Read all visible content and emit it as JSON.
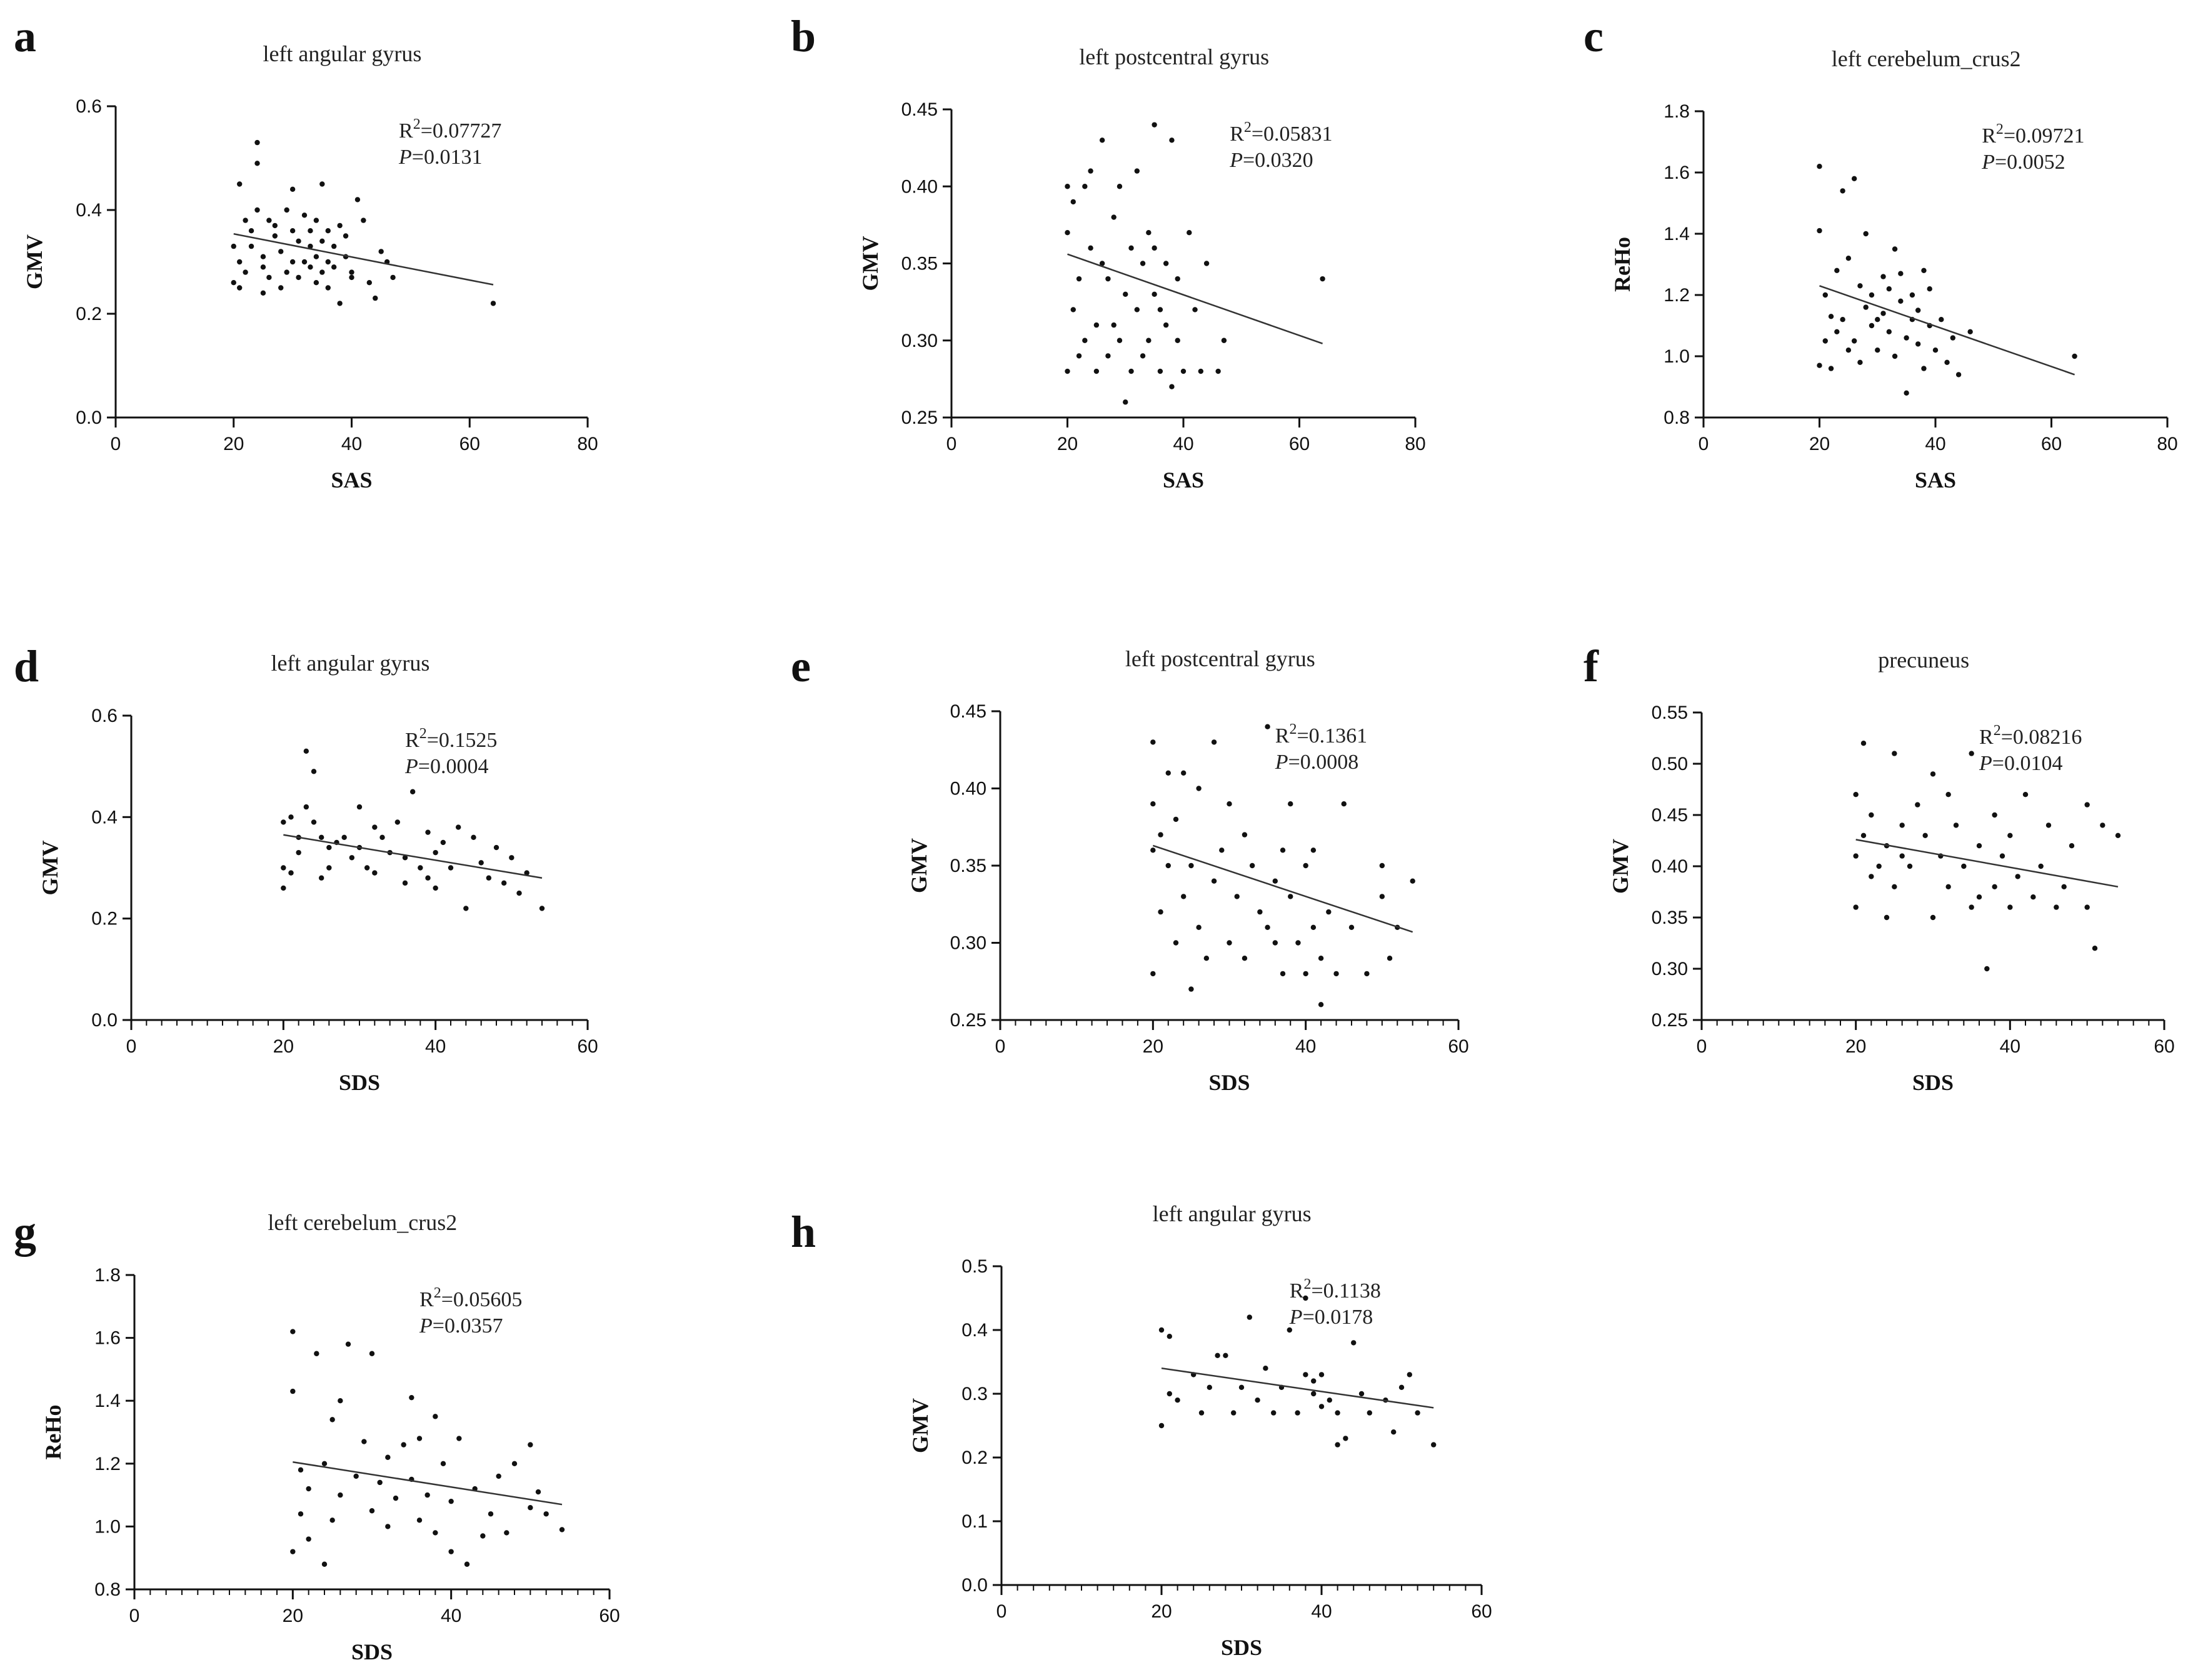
{
  "chart_data": [
    {
      "type": "scatter",
      "panel": "a",
      "title": "left angular gyrus",
      "xlabel": "SAS",
      "ylabel": "GMV",
      "xlim": [
        0,
        80
      ],
      "ylim": [
        0.0,
        0.6
      ],
      "xticks": [
        "0",
        "20",
        "40",
        "60",
        "80"
      ],
      "yticks": [
        "0.0",
        "0.2",
        "0.4",
        "0.6"
      ],
      "minor_x": false,
      "r2_label": "R",
      "r2_value": "=0.07727",
      "p_label": "P",
      "p_value": "=0.0131",
      "fit": {
        "x": [
          20,
          64
        ],
        "y": [
          0.354,
          0.256
        ]
      },
      "points": {
        "x": [
          20,
          20,
          21,
          21,
          21,
          22,
          22,
          23,
          23,
          24,
          24,
          24,
          25,
          25,
          25,
          26,
          26,
          27,
          27,
          28,
          28,
          29,
          29,
          30,
          30,
          30,
          31,
          31,
          32,
          32,
          33,
          33,
          33,
          34,
          34,
          34,
          35,
          35,
          35,
          36,
          36,
          36,
          37,
          37,
          38,
          38,
          39,
          39,
          40,
          40,
          41,
          42,
          43,
          44,
          45,
          46,
          47,
          64
        ],
        "y": [
          0.33,
          0.26,
          0.3,
          0.45,
          0.25,
          0.38,
          0.28,
          0.33,
          0.36,
          0.49,
          0.53,
          0.4,
          0.24,
          0.31,
          0.29,
          0.38,
          0.27,
          0.35,
          0.37,
          0.32,
          0.25,
          0.4,
          0.28,
          0.36,
          0.3,
          0.44,
          0.34,
          0.27,
          0.39,
          0.3,
          0.33,
          0.36,
          0.29,
          0.31,
          0.38,
          0.26,
          0.34,
          0.45,
          0.28,
          0.3,
          0.36,
          0.25,
          0.33,
          0.29,
          0.37,
          0.22,
          0.31,
          0.35,
          0.28,
          0.27,
          0.42,
          0.38,
          0.26,
          0.23,
          0.32,
          0.3,
          0.27,
          0.22
        ]
      }
    },
    {
      "type": "scatter",
      "panel": "b",
      "title": "left postcentral gyrus",
      "xlabel": "SAS",
      "ylabel": "GMV",
      "xlim": [
        0,
        80
      ],
      "ylim": [
        0.25,
        0.45
      ],
      "xticks": [
        "0",
        "20",
        "40",
        "60",
        "80"
      ],
      "yticks": [
        "0.25",
        "0.30",
        "0.35",
        "0.40",
        "0.45"
      ],
      "minor_x": false,
      "r2_label": "R",
      "r2_value": "=0.05831",
      "p_label": "P",
      "p_value": "=0.0320",
      "fit": {
        "x": [
          20,
          64
        ],
        "y": [
          0.356,
          0.298
        ]
      },
      "points": {
        "x": [
          20,
          20,
          20,
          21,
          21,
          22,
          22,
          23,
          23,
          24,
          24,
          25,
          25,
          26,
          26,
          27,
          27,
          28,
          28,
          29,
          29,
          30,
          30,
          31,
          31,
          32,
          32,
          33,
          33,
          34,
          34,
          35,
          35,
          35,
          36,
          36,
          37,
          37,
          38,
          38,
          39,
          39,
          40,
          41,
          42,
          43,
          44,
          46,
          47,
          64
        ],
        "y": [
          0.4,
          0.28,
          0.37,
          0.32,
          0.39,
          0.34,
          0.29,
          0.4,
          0.3,
          0.41,
          0.36,
          0.31,
          0.28,
          0.43,
          0.35,
          0.29,
          0.34,
          0.38,
          0.31,
          0.4,
          0.3,
          0.26,
          0.33,
          0.36,
          0.28,
          0.41,
          0.32,
          0.35,
          0.29,
          0.37,
          0.3,
          0.44,
          0.33,
          0.36,
          0.28,
          0.32,
          0.35,
          0.31,
          0.43,
          0.27,
          0.3,
          0.34,
          0.28,
          0.37,
          0.32,
          0.28,
          0.35,
          0.28,
          0.3,
          0.34
        ]
      }
    },
    {
      "type": "scatter",
      "panel": "c",
      "title": "left cerebelum_crus2",
      "xlabel": "SAS",
      "ylabel": "ReHo",
      "xlim": [
        0,
        80
      ],
      "ylim": [
        0.8,
        1.8
      ],
      "xticks": [
        "0",
        "20",
        "40",
        "60",
        "80"
      ],
      "yticks": [
        "0.8",
        "1.0",
        "1.2",
        "1.4",
        "1.6",
        "1.8"
      ],
      "minor_x": false,
      "r2_label": "R",
      "r2_value": "=0.09721",
      "p_label": "P",
      "p_value": "=0.0052",
      "fit": {
        "x": [
          20,
          64
        ],
        "y": [
          1.23,
          0.94
        ]
      },
      "points": {
        "x": [
          20,
          20,
          20,
          21,
          21,
          22,
          22,
          23,
          23,
          24,
          24,
          25,
          25,
          26,
          26,
          27,
          27,
          28,
          28,
          29,
          29,
          30,
          30,
          31,
          31,
          32,
          32,
          33,
          33,
          34,
          34,
          35,
          35,
          36,
          36,
          37,
          37,
          38,
          38,
          39,
          39,
          40,
          41,
          42,
          43,
          44,
          46,
          64
        ],
        "y": [
          1.62,
          1.41,
          0.97,
          1.2,
          1.05,
          1.13,
          0.96,
          1.28,
          1.08,
          1.54,
          1.12,
          1.32,
          1.02,
          1.58,
          1.05,
          1.23,
          0.98,
          1.16,
          1.4,
          1.1,
          1.2,
          1.12,
          1.02,
          1.26,
          1.14,
          1.08,
          1.22,
          1.35,
          1.0,
          1.18,
          1.27,
          1.06,
          0.88,
          1.2,
          1.12,
          1.15,
          1.04,
          1.28,
          0.96,
          1.1,
          1.22,
          1.02,
          1.12,
          0.98,
          1.06,
          0.94,
          1.08,
          1.0
        ]
      }
    },
    {
      "type": "scatter",
      "panel": "d",
      "title": "left angular gyrus",
      "xlabel": "SDS",
      "ylabel": "GMV",
      "xlim": [
        0,
        60
      ],
      "ylim": [
        0.0,
        0.6
      ],
      "xticks": [
        "0",
        "20",
        "40",
        "60"
      ],
      "yticks": [
        "0.0",
        "0.2",
        "0.4",
        "0.6"
      ],
      "minor_x": true,
      "r2_label": "R",
      "r2_value": "=0.1525",
      "p_label": "P",
      "p_value": "=0.0004",
      "fit": {
        "x": [
          20,
          54
        ],
        "y": [
          0.365,
          0.28
        ]
      },
      "points": {
        "x": [
          20,
          20,
          20,
          21,
          21,
          22,
          22,
          23,
          23,
          24,
          24,
          25,
          25,
          26,
          26,
          27,
          28,
          29,
          30,
          30,
          31,
          32,
          32,
          33,
          34,
          35,
          36,
          36,
          37,
          38,
          39,
          39,
          40,
          40,
          41,
          42,
          43,
          44,
          45,
          46,
          47,
          48,
          49,
          50,
          51,
          52,
          54
        ],
        "y": [
          0.26,
          0.39,
          0.3,
          0.4,
          0.29,
          0.33,
          0.36,
          0.53,
          0.42,
          0.49,
          0.39,
          0.36,
          0.28,
          0.34,
          0.3,
          0.35,
          0.36,
          0.32,
          0.34,
          0.42,
          0.3,
          0.38,
          0.29,
          0.36,
          0.33,
          0.39,
          0.27,
          0.32,
          0.45,
          0.3,
          0.28,
          0.37,
          0.33,
          0.26,
          0.35,
          0.3,
          0.38,
          0.22,
          0.36,
          0.31,
          0.28,
          0.34,
          0.27,
          0.32,
          0.25,
          0.29,
          0.22
        ]
      }
    },
    {
      "type": "scatter",
      "panel": "e",
      "title": "left postcentral gyrus",
      "xlabel": "SDS",
      "ylabel": "GMV",
      "xlim": [
        0,
        60
      ],
      "ylim": [
        0.25,
        0.45
      ],
      "xticks": [
        "0",
        "20",
        "40",
        "60"
      ],
      "yticks": [
        "0.25",
        "0.30",
        "0.35",
        "0.40",
        "0.45"
      ],
      "minor_x": true,
      "r2_label": "R",
      "r2_value": "=0.1361",
      "p_label": "P",
      "p_value": "=0.0008",
      "fit": {
        "x": [
          20,
          54
        ],
        "y": [
          0.363,
          0.307
        ]
      },
      "points": {
        "x": [
          20,
          20,
          20,
          20,
          21,
          21,
          22,
          22,
          23,
          23,
          24,
          24,
          25,
          25,
          26,
          26,
          27,
          28,
          28,
          29,
          30,
          30,
          31,
          32,
          32,
          33,
          34,
          35,
          35,
          36,
          36,
          37,
          37,
          38,
          38,
          39,
          40,
          40,
          41,
          41,
          42,
          42,
          43,
          44,
          45,
          46,
          48,
          50,
          50,
          51,
          52,
          54
        ],
        "y": [
          0.43,
          0.39,
          0.36,
          0.28,
          0.37,
          0.32,
          0.41,
          0.35,
          0.3,
          0.38,
          0.41,
          0.33,
          0.35,
          0.27,
          0.4,
          0.31,
          0.29,
          0.43,
          0.34,
          0.36,
          0.3,
          0.39,
          0.33,
          0.37,
          0.29,
          0.35,
          0.32,
          0.44,
          0.31,
          0.34,
          0.3,
          0.36,
          0.28,
          0.33,
          0.39,
          0.3,
          0.35,
          0.28,
          0.31,
          0.36,
          0.26,
          0.29,
          0.32,
          0.28,
          0.39,
          0.31,
          0.28,
          0.35,
          0.33,
          0.29,
          0.31,
          0.34
        ]
      }
    },
    {
      "type": "scatter",
      "panel": "f",
      "title": "precuneus",
      "xlabel": "SDS",
      "ylabel": "GMV",
      "xlim": [
        0,
        60
      ],
      "ylim": [
        0.25,
        0.55
      ],
      "xticks": [
        "0",
        "20",
        "40",
        "60"
      ],
      "yticks": [
        "0.25",
        "0.30",
        "0.35",
        "0.40",
        "0.45",
        "0.50",
        "0.55"
      ],
      "minor_x": true,
      "r2_label": "R",
      "r2_value": "=0.08216",
      "p_label": "P",
      "p_value": "=0.0104",
      "fit": {
        "x": [
          20,
          54
        ],
        "y": [
          0.426,
          0.38
        ]
      },
      "points": {
        "x": [
          20,
          20,
          20,
          21,
          21,
          22,
          22,
          23,
          24,
          24,
          25,
          25,
          26,
          26,
          27,
          28,
          29,
          30,
          30,
          31,
          32,
          32,
          33,
          34,
          35,
          35,
          36,
          36,
          37,
          38,
          38,
          39,
          40,
          40,
          41,
          42,
          43,
          44,
          45,
          46,
          47,
          48,
          50,
          50,
          51,
          52,
          54
        ],
        "y": [
          0.47,
          0.41,
          0.36,
          0.52,
          0.43,
          0.39,
          0.45,
          0.4,
          0.35,
          0.42,
          0.51,
          0.38,
          0.44,
          0.41,
          0.4,
          0.46,
          0.43,
          0.35,
          0.49,
          0.41,
          0.38,
          0.47,
          0.44,
          0.4,
          0.36,
          0.51,
          0.42,
          0.37,
          0.3,
          0.45,
          0.38,
          0.41,
          0.36,
          0.43,
          0.39,
          0.47,
          0.37,
          0.4,
          0.44,
          0.36,
          0.38,
          0.42,
          0.46,
          0.36,
          0.32,
          0.44,
          0.43
        ]
      }
    },
    {
      "type": "scatter",
      "panel": "g",
      "title": "left cerebelum_crus2",
      "xlabel": "SDS",
      "ylabel": "ReHo",
      "xlim": [
        0,
        60
      ],
      "ylim": [
        0.8,
        1.8
      ],
      "xticks": [
        "0",
        "20",
        "40",
        "60"
      ],
      "yticks": [
        "0.8",
        "1.0",
        "1.2",
        "1.4",
        "1.6",
        "1.8"
      ],
      "minor_x": true,
      "r2_label": "R",
      "r2_value": "=0.05605",
      "p_label": "P",
      "p_value": "=0.0357",
      "fit": {
        "x": [
          20,
          54
        ],
        "y": [
          1.205,
          1.07
        ]
      },
      "points": {
        "x": [
          20,
          20,
          20,
          21,
          21,
          22,
          22,
          23,
          24,
          24,
          25,
          25,
          26,
          26,
          27,
          28,
          29,
          30,
          30,
          31,
          32,
          32,
          33,
          34,
          35,
          35,
          36,
          36,
          37,
          38,
          38,
          39,
          40,
          40,
          41,
          42,
          43,
          44,
          45,
          46,
          47,
          48,
          50,
          50,
          51,
          52,
          54
        ],
        "y": [
          1.62,
          1.43,
          0.92,
          1.18,
          1.04,
          1.12,
          0.96,
          1.55,
          0.88,
          1.2,
          1.34,
          1.02,
          1.4,
          1.1,
          1.58,
          1.16,
          1.27,
          1.55,
          1.05,
          1.14,
          1.0,
          1.22,
          1.09,
          1.26,
          1.41,
          1.15,
          1.02,
          1.28,
          1.1,
          1.35,
          0.98,
          1.2,
          1.08,
          0.92,
          1.28,
          0.88,
          1.12,
          0.97,
          1.04,
          1.16,
          0.98,
          1.2,
          1.26,
          1.06,
          1.11,
          1.04,
          0.99
        ]
      }
    },
    {
      "type": "scatter",
      "panel": "h",
      "title": "left angular gyrus",
      "xlabel": "SDS",
      "ylabel": "GMV",
      "xlim": [
        0,
        60
      ],
      "ylim": [
        0.0,
        0.5
      ],
      "xticks": [
        "0",
        "20",
        "40",
        "60"
      ],
      "yticks": [
        "0.0",
        "0.1",
        "0.2",
        "0.3",
        "0.4",
        "0.5"
      ],
      "minor_x": true,
      "r2_label": "R",
      "r2_value": "=0.1138",
      "p_label": "P",
      "p_value": "=0.0178",
      "fit": {
        "x": [
          20,
          54
        ],
        "y": [
          0.34,
          0.278
        ]
      },
      "points": {
        "x": [
          20,
          20,
          21,
          21,
          22,
          24,
          25,
          26,
          27,
          28,
          29,
          30,
          31,
          32,
          33,
          34,
          35,
          36,
          37,
          38,
          38,
          39,
          39,
          40,
          40,
          41,
          42,
          42,
          43,
          44,
          45,
          46,
          48,
          49,
          50,
          51,
          52,
          54
        ],
        "y": [
          0.4,
          0.25,
          0.39,
          0.3,
          0.29,
          0.33,
          0.27,
          0.31,
          0.36,
          0.36,
          0.27,
          0.31,
          0.42,
          0.29,
          0.34,
          0.27,
          0.31,
          0.4,
          0.27,
          0.45,
          0.33,
          0.3,
          0.32,
          0.28,
          0.33,
          0.29,
          0.22,
          0.27,
          0.23,
          0.38,
          0.3,
          0.27,
          0.29,
          0.24,
          0.31,
          0.33,
          0.27,
          0.22
        ]
      }
    }
  ]
}
